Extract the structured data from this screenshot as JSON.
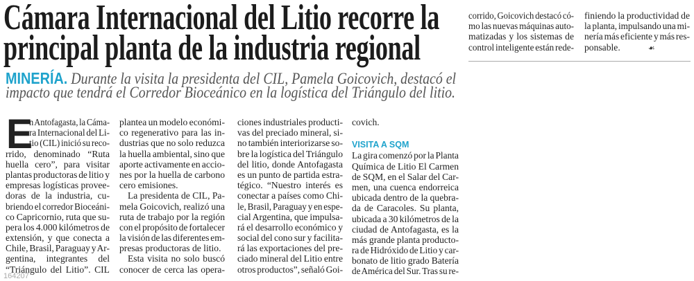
{
  "headline": {
    "lines": [
      "Cámara Internacional del Litio recorre la",
      "principal planta de la industria regional"
    ]
  },
  "subhead": {
    "kicker": "MINERÍA.",
    "line1": "Durante la visita la presidenta del CIL, Pamela Goicovich, destacó el",
    "line2": "impacto que tendrá el Corredor Bioceánico en la logística del Triángulo del litio."
  },
  "article": {
    "drop_cap": "E",
    "col1": [
      "n Antofagasta, la Cáma-",
      "ra Internacional del Li-",
      "tio (CIL) inició su reco-",
      "rrido, denominado “Ruta",
      "huella cero”, para visitar",
      "plantas productoras de litio y",
      "empresas logísticas provee-",
      "doras de la industria, cu-",
      "briendo el corredor Bioceáni-",
      "co Capricornio, ruta que su-",
      "pera los 4.000 kilómetros de",
      "extensión, y que conecta a",
      "Chile, Brasil, Paraguay y Ar-",
      "gentina, integrantes del",
      "“Triángulo del Litio”. CIL"
    ],
    "col2": [
      [
        "plantea un modelo económi-",
        "co regenerativo para las in-",
        "dustrias que no solo reduzca",
        "la huella ambiental, sino que",
        "aporte activamente en accio-",
        "nes por la huella de carbono",
        "cero emisiones."
      ],
      [
        "La presidenta de CIL, Pa-",
        "mela Goicovich, realizó una",
        "ruta de trabajo por la región",
        "con el propósito de fortalecer",
        "la visión de las diferentes em-",
        "presas productoras de litio."
      ],
      [
        "Esta visita no solo buscó",
        "conocer de cerca las opera-"
      ]
    ],
    "col3": [
      "ciones industriales producti-",
      "vas del preciado mineral, si-",
      "no también interiorizarse so-",
      "bre la logística del Triángulo",
      "del litio, donde Antofagasta",
      "es un punto de partida estra-",
      "tégico. “Nuestro interés es",
      "conectar a países como Chi-",
      "le, Brasil, Paraguay y en espe-",
      "cial Argentina, que impulsa-",
      "rá el desarrollo económico y",
      "social del cono sur y facilita-",
      "rá las exportaciones del pre-",
      "ciado mineral del Litio entre",
      "otros productos”, señaló Goi-"
    ],
    "col4_start": "covich.",
    "section_heading": "VISITA A SQM",
    "col4": [
      "La gira comenzó por la Planta",
      "Química de Litio El Carmen",
      "de SQM, en el Salar del Car-",
      "men, una cuenca endorreica",
      "ubicada dentro de la quebra-",
      "da de Caracoles. Su planta,",
      "ubicada a 30 kilómetros de la",
      "ciudad de Antofagasta, es la",
      "más grande planta producto-",
      "ra de Hidróxido de Litio y car-",
      "bonato de litio grado Batería",
      "de América del Sur. Tras su re-"
    ],
    "col5": [
      "corrido, Goicovich destacó có-",
      "mo las nuevas máquinas auto-",
      "matizadas y los sistemas de",
      "control inteligente están rede-"
    ],
    "col6": [
      "finiendo la productividad de",
      "la planta, impulsando una mi-",
      "nería más eficiente y más res-"
    ],
    "col6_last": "ponsable.",
    "end_mark": "☙",
    "end_mark_icon": "end-of-article-icon"
  },
  "footer": {
    "id": "164207"
  },
  "colors": {
    "accent": "#1fa3cc",
    "subhead": "#555555",
    "text": "#222222"
  }
}
